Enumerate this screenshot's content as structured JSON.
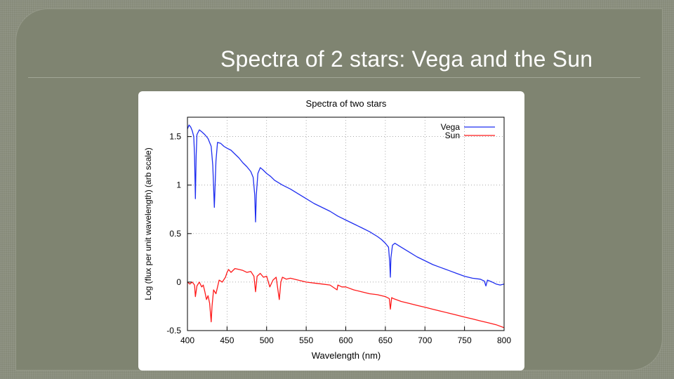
{
  "slide": {
    "title": "Spectra of 2 stars: Vega and the Sun"
  },
  "chart_data": {
    "type": "line",
    "title": "Spectra of two stars",
    "xlabel": "Wavelength (nm)",
    "ylabel": "Log (flux per unit wavelength) (arb scale)",
    "xlim": [
      400,
      800
    ],
    "ylim": [
      -0.5,
      1.7
    ],
    "xticks": [
      400,
      450,
      500,
      550,
      600,
      650,
      700,
      750,
      800
    ],
    "yticks": [
      -0.5,
      0,
      0.5,
      1,
      1.5
    ],
    "ytick_labels": [
      "-0.5",
      "0",
      "0.5",
      "1",
      "1.5"
    ],
    "grid": true,
    "legend": "top-right",
    "series": [
      {
        "name": "Vega",
        "color": "#1f2ef0",
        "x": [
          400,
          402,
          404,
          406,
          408,
          409,
          410,
          411,
          412,
          415,
          418,
          422,
          426,
          430,
          432,
          434,
          436,
          438,
          442,
          446,
          450,
          455,
          460,
          465,
          470,
          475,
          480,
          483,
          485,
          486,
          487,
          489,
          492,
          495,
          500,
          505,
          510,
          520,
          530,
          540,
          550,
          560,
          570,
          580,
          590,
          600,
          610,
          620,
          630,
          640,
          645,
          650,
          654,
          655.5,
          656.3,
          657,
          659,
          662,
          670,
          680,
          690,
          700,
          710,
          720,
          730,
          740,
          750,
          760,
          770,
          775,
          777,
          779,
          785,
          790,
          795,
          800
        ],
        "y": [
          1.58,
          1.62,
          1.6,
          1.56,
          1.5,
          1.3,
          0.86,
          1.3,
          1.52,
          1.57,
          1.55,
          1.52,
          1.48,
          1.4,
          1.2,
          0.77,
          1.25,
          1.44,
          1.43,
          1.4,
          1.38,
          1.36,
          1.32,
          1.28,
          1.23,
          1.19,
          1.14,
          1.08,
          0.9,
          0.62,
          0.9,
          1.12,
          1.18,
          1.16,
          1.12,
          1.09,
          1.05,
          1.0,
          0.96,
          0.91,
          0.86,
          0.81,
          0.77,
          0.73,
          0.68,
          0.64,
          0.6,
          0.56,
          0.52,
          0.47,
          0.44,
          0.4,
          0.36,
          0.2,
          0.05,
          0.25,
          0.38,
          0.4,
          0.36,
          0.31,
          0.26,
          0.22,
          0.18,
          0.15,
          0.12,
          0.09,
          0.06,
          0.04,
          0.03,
          0.01,
          -0.04,
          0.02,
          0.0,
          -0.02,
          -0.03,
          -0.02
        ]
      },
      {
        "name": "Sun",
        "color": "#ff1a1a",
        "x": [
          400,
          403,
          406,
          409,
          410,
          412,
          415,
          418,
          420,
          422,
          424,
          426,
          428,
          430,
          431,
          433,
          436,
          440,
          444,
          448,
          450,
          452,
          455,
          460,
          465,
          470,
          475,
          480,
          484,
          486,
          488,
          492,
          496,
          500,
          504,
          508,
          512,
          516,
          518,
          520,
          525,
          530,
          540,
          550,
          560,
          570,
          580,
          589,
          590,
          595,
          600,
          610,
          620,
          630,
          640,
          650,
          655,
          656.3,
          658,
          660,
          670,
          680,
          690,
          700,
          710,
          720,
          730,
          740,
          750,
          760,
          770,
          780,
          790,
          800
        ],
        "y": [
          0.0,
          -0.02,
          0.0,
          -0.03,
          -0.15,
          -0.04,
          0.0,
          -0.05,
          -0.03,
          -0.1,
          -0.18,
          -0.14,
          -0.22,
          -0.41,
          -0.25,
          -0.08,
          -0.12,
          0.02,
          0.0,
          0.05,
          0.1,
          0.13,
          0.1,
          0.14,
          0.13,
          0.12,
          0.1,
          0.11,
          0.06,
          -0.1,
          0.06,
          0.09,
          0.05,
          0.06,
          -0.05,
          0.02,
          0.05,
          -0.18,
          0.0,
          0.05,
          0.03,
          0.04,
          0.02,
          0.0,
          -0.01,
          -0.02,
          -0.03,
          -0.08,
          -0.03,
          -0.05,
          -0.05,
          -0.08,
          -0.1,
          -0.12,
          -0.13,
          -0.15,
          -0.17,
          -0.28,
          -0.16,
          -0.17,
          -0.2,
          -0.22,
          -0.24,
          -0.26,
          -0.28,
          -0.3,
          -0.32,
          -0.34,
          -0.36,
          -0.38,
          -0.4,
          -0.42,
          -0.44,
          -0.47
        ]
      }
    ]
  }
}
